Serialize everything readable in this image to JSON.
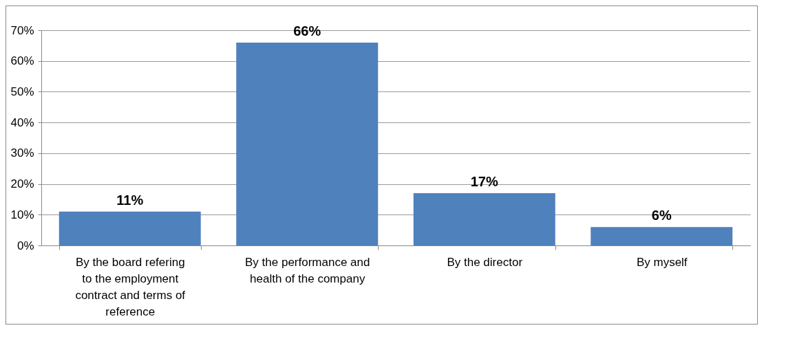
{
  "chart_data": {
    "type": "bar",
    "categories": [
      "By the board refering to the employment contract and terms of reference",
      "By the performance and health of the company",
      "By the director",
      "By myself"
    ],
    "values": [
      11,
      66,
      17,
      6
    ],
    "value_labels": [
      "11%",
      "66%",
      "17%",
      "6%"
    ],
    "color": "#4f81bd",
    "ylim": [
      0,
      70
    ],
    "yticks": [
      {
        "value": 0,
        "label": "0%"
      },
      {
        "value": 10,
        "label": "10%"
      },
      {
        "value": 20,
        "label": "20%"
      },
      {
        "value": 30,
        "label": "30%"
      },
      {
        "value": 40,
        "label": "40%"
      },
      {
        "value": 50,
        "label": "50%"
      },
      {
        "value": 60,
        "label": "60%"
      },
      {
        "value": 70,
        "label": "70%"
      }
    ],
    "grid": "y"
  }
}
